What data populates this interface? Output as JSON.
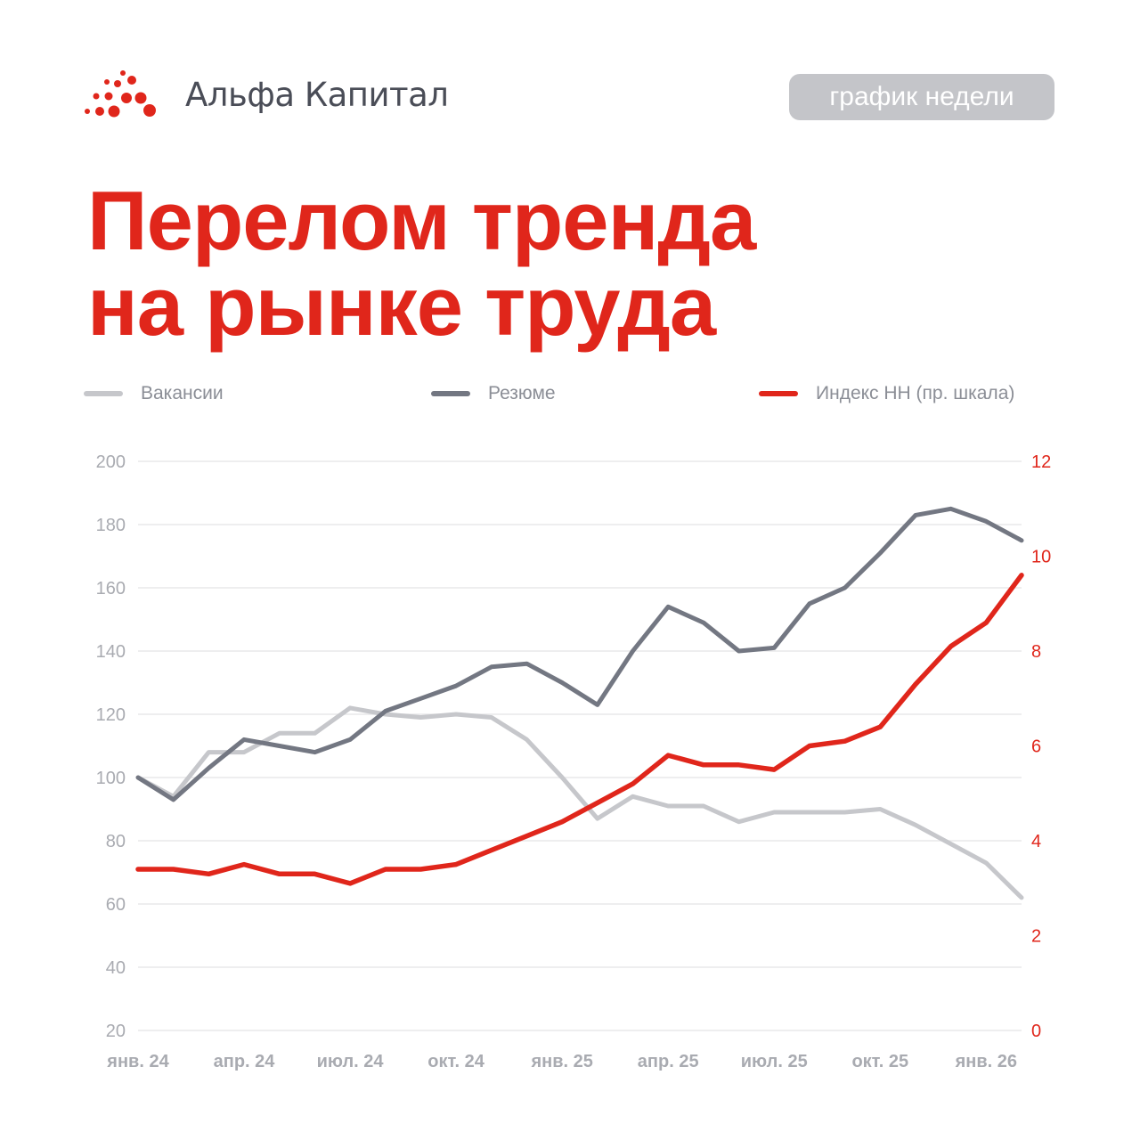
{
  "header": {
    "logo_text": "Альфа Капитал",
    "badge": "график недели"
  },
  "title": {
    "line1": "Перелом тренда",
    "line2": "на рынке труда"
  },
  "colors": {
    "brand_red": "#e0261b",
    "vacancies": "#c6c7cb",
    "resumes": "#737782",
    "grid": "#e8e8ea",
    "axis_text": "#a9abb1"
  },
  "chart_data": {
    "type": "line",
    "x": [
      "янв. 24",
      "фев. 24",
      "мар. 24",
      "апр. 24",
      "май 24",
      "июн. 24",
      "июл. 24",
      "авг. 24",
      "сен. 24",
      "окт. 24",
      "ноя. 24",
      "дек. 24",
      "янв. 25",
      "фев. 25",
      "мар. 25",
      "апр. 25",
      "май 25",
      "июн. 25",
      "июл. 25",
      "авг. 25",
      "сен. 25",
      "окт. 25",
      "ноя. 25",
      "дек. 25",
      "янв. 26",
      "фев. 26"
    ],
    "x_tick_labels": [
      "янв. 24",
      "апр. 24",
      "июл. 24",
      "окт. 24",
      "янв. 25",
      "апр. 25",
      "июл. 25",
      "окт. 25",
      "янв. 26"
    ],
    "y_left": {
      "ticks": [
        20,
        40,
        60,
        80,
        100,
        120,
        140,
        160,
        180,
        200
      ],
      "range": [
        20,
        200
      ]
    },
    "y_right": {
      "ticks": [
        0,
        2,
        4,
        6,
        8,
        10,
        12
      ],
      "range": [
        0,
        12
      ]
    },
    "series": [
      {
        "name": "Вакансии",
        "axis": "left",
        "color": "#c6c7cb",
        "values": [
          100,
          94,
          108,
          108,
          114,
          114,
          122,
          120,
          119,
          120,
          119,
          112,
          100,
          87,
          94,
          91,
          91,
          86,
          89,
          89,
          89,
          90,
          85,
          79,
          73,
          62
        ]
      },
      {
        "name": "Резюме",
        "axis": "left",
        "color": "#737782",
        "values": [
          100,
          93,
          103,
          112,
          110,
          108,
          112,
          121,
          125,
          129,
          135,
          136,
          130,
          123,
          140,
          154,
          149,
          140,
          141,
          155,
          160,
          171,
          183,
          185,
          181,
          175
        ]
      },
      {
        "name": "Индекс HH (пр. шкала)",
        "axis": "right",
        "color": "#e0261b",
        "values": [
          3.4,
          3.4,
          3.3,
          3.5,
          3.3,
          3.3,
          3.1,
          3.4,
          3.4,
          3.5,
          3.8,
          4.1,
          4.4,
          4.8,
          5.2,
          5.8,
          5.6,
          5.6,
          5.5,
          6.0,
          6.1,
          6.4,
          7.3,
          8.1,
          8.6,
          9.6
        ]
      }
    ],
    "legend_position": "top",
    "grid": true
  }
}
